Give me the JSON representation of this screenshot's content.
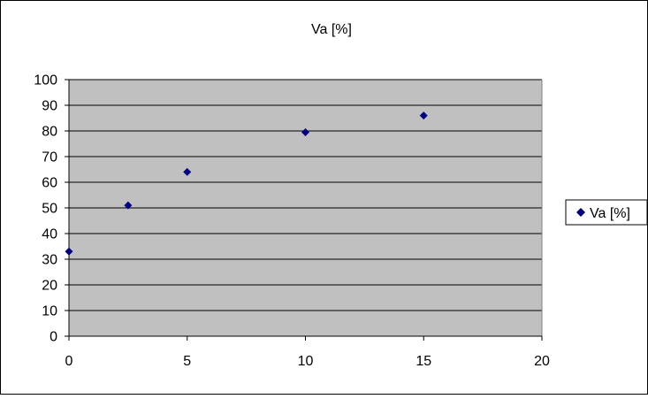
{
  "chart_data": {
    "type": "scatter",
    "title": "Va [%]",
    "xlabel": "",
    "ylabel": "",
    "xlim": [
      0,
      20
    ],
    "ylim": [
      0,
      100
    ],
    "x_ticks": [
      0,
      5,
      10,
      15,
      20
    ],
    "y_ticks": [
      0,
      10,
      20,
      30,
      40,
      50,
      60,
      70,
      80,
      90,
      100
    ],
    "grid": "horizontal major gridlines",
    "legend_position": "right",
    "plot_background": "#c0c0c0",
    "marker": "diamond",
    "series": [
      {
        "name": "Va [%]",
        "color": "#000080",
        "points": [
          {
            "x": 0,
            "y": 33
          },
          {
            "x": 2.5,
            "y": 51
          },
          {
            "x": 5,
            "y": 64
          },
          {
            "x": 10,
            "y": 79.5
          },
          {
            "x": 15,
            "y": 86
          }
        ]
      }
    ]
  }
}
